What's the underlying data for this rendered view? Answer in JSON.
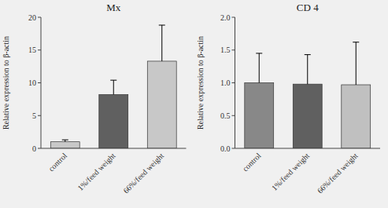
{
  "chart_data": [
    {
      "type": "bar",
      "title": "Mx",
      "categories": [
        "control",
        "1%/feed weight",
        "66%/feed weight"
      ],
      "values": [
        1.0,
        8.2,
        13.3
      ],
      "errors": [
        0.3,
        2.2,
        5.5
      ],
      "ylabel": "Relative expression to β-actin",
      "ylim": [
        0,
        20
      ],
      "yticks": [
        0,
        5,
        10,
        15,
        20
      ],
      "colors": [
        "#c8c8c8",
        "#606060",
        "#c8c8c8"
      ]
    },
    {
      "type": "bar",
      "title": "CD 4",
      "categories": [
        "control",
        "1%/feed weight",
        "66%/feed weight"
      ],
      "values": [
        1.0,
        0.98,
        0.97
      ],
      "errors": [
        0.45,
        0.45,
        0.65
      ],
      "ylabel": "Relative expression to β-actin",
      "ylim": [
        0,
        2.0
      ],
      "yticks": [
        {
          "value": 0.0,
          "label": "0.0"
        },
        0.5,
        {
          "value": 1.0,
          "label": "1.0"
        },
        1.5,
        {
          "value": 2.0,
          "label": "2.0"
        }
      ],
      "colors": [
        "#888888",
        "#606060",
        "#c0c0c0"
      ]
    }
  ]
}
